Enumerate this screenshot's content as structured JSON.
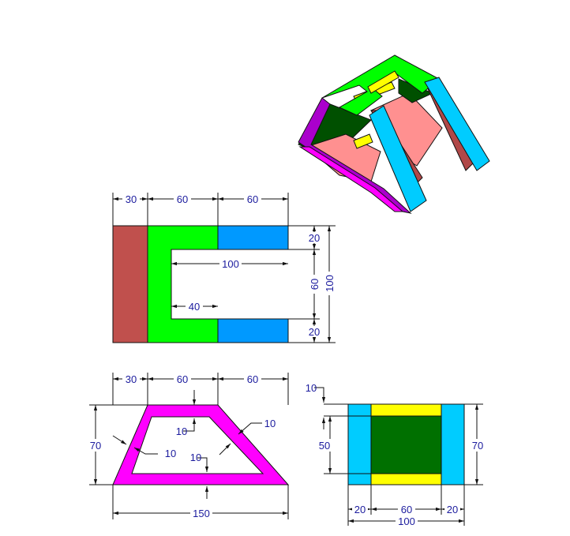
{
  "colors": {
    "dimension_text": "#1c1c9e",
    "brown": "#c0504d",
    "green": "#00ff00",
    "blue": "#0099ff",
    "magenta": "#ff00ff",
    "dark_green": "#007000",
    "yellow": "#ffff00",
    "cyan": "#00ccff",
    "purple": "#aa00cc",
    "salmon": "#ff9090",
    "maroon": "#b04848"
  },
  "top_view": {
    "dim_30": "30",
    "dim_60_a": "60",
    "dim_60_b": "60",
    "dim_100_inner": "100",
    "dim_40": "40",
    "dim_20_top": "20",
    "dim_20_bottom": "20",
    "dim_60_vertical": "60",
    "dim_100_vertical": "100"
  },
  "front_view": {
    "dim_30": "30",
    "dim_60_a": "60",
    "dim_60_b": "60",
    "dim_70": "70",
    "dim_10_top": "10",
    "dim_10_left": "10",
    "dim_10_right": "10",
    "dim_10_bottom": "10",
    "dim_150": "150"
  },
  "side_view": {
    "dim_10": "10",
    "dim_50": "50",
    "dim_70": "70",
    "dim_20_left": "20",
    "dim_60": "60",
    "dim_20_right": "20",
    "dim_100": "100"
  }
}
